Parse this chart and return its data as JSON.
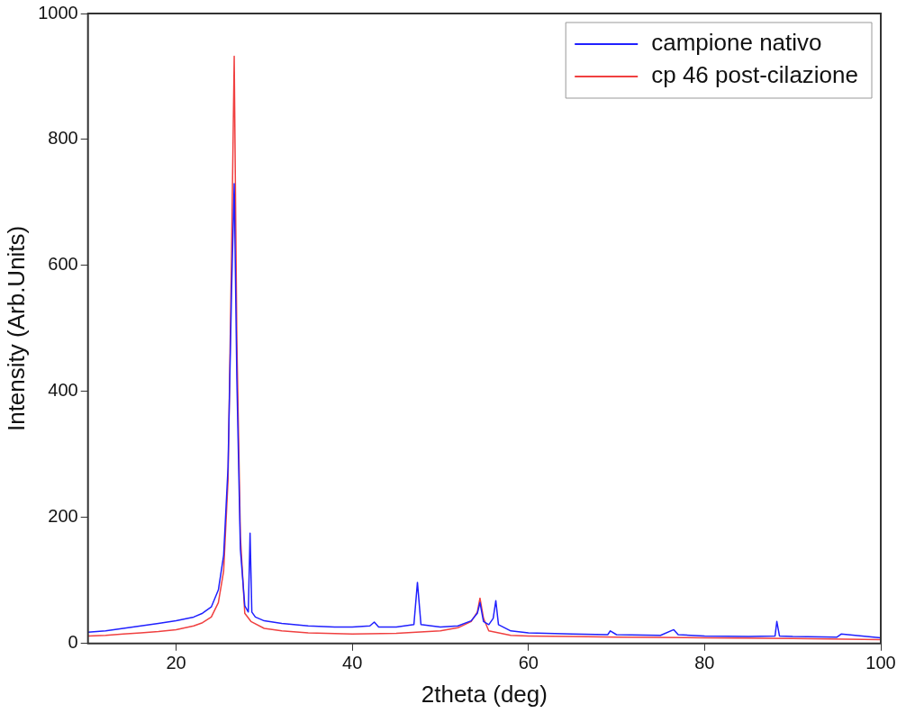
{
  "chart_data": {
    "type": "line",
    "xlabel": "2theta (deg)",
    "ylabel": "Intensity (Arb.Units)",
    "xlim": [
      10,
      100
    ],
    "ylim": [
      0,
      1000
    ],
    "xticks": [
      20,
      40,
      60,
      80,
      100
    ],
    "yticks": [
      0,
      200,
      400,
      600,
      800,
      1000
    ],
    "grid": false,
    "legend": "top right",
    "marker": "none",
    "line_style": "solid",
    "series": [
      {
        "name": "campione nativo",
        "color": "#2020ff",
        "x": [
          10,
          12,
          14,
          16,
          18,
          20,
          22,
          23,
          24,
          24.8,
          25.4,
          25.9,
          26.3,
          26.6,
          26.9,
          27.3,
          27.8,
          28.2,
          28.4,
          28.6,
          29,
          30,
          32,
          35,
          38,
          40,
          42,
          42.5,
          43,
          45,
          47,
          47.4,
          47.8,
          50,
          52,
          53.5,
          54.2,
          54.5,
          54.9,
          55.5,
          56,
          56.3,
          56.6,
          58,
          60,
          65,
          69,
          69.3,
          70,
          75,
          76.5,
          77,
          80,
          85,
          88,
          88.2,
          88.5,
          90,
          95,
          95.5,
          100
        ],
        "values": [
          18,
          20,
          24,
          28,
          32,
          36,
          42,
          48,
          58,
          85,
          140,
          280,
          560,
          730,
          420,
          150,
          60,
          50,
          175,
          50,
          42,
          36,
          32,
          28,
          26,
          26,
          28,
          34,
          26,
          26,
          30,
          97,
          30,
          26,
          28,
          36,
          48,
          65,
          35,
          30,
          40,
          68,
          30,
          20,
          17,
          15,
          14,
          20,
          14,
          13,
          22,
          14,
          12,
          11,
          12,
          35,
          12,
          11,
          10,
          15,
          9
        ]
      },
      {
        "name": "cp 46 post-cilazione",
        "color": "#f04040",
        "x": [
          10,
          12,
          14,
          16,
          18,
          20,
          22,
          23,
          24,
          24.8,
          25.4,
          25.9,
          26.3,
          26.6,
          26.9,
          27.3,
          27.8,
          28.5,
          30,
          32,
          35,
          40,
          45,
          50,
          52,
          53.5,
          54.2,
          54.5,
          54.9,
          55.5,
          58,
          60,
          65,
          70,
          80,
          90,
          100
        ],
        "values": [
          12,
          13,
          15,
          17,
          19,
          22,
          28,
          33,
          42,
          65,
          115,
          260,
          620,
          932,
          480,
          170,
          48,
          35,
          24,
          20,
          17,
          15,
          16,
          20,
          25,
          35,
          50,
          72,
          40,
          20,
          13,
          12,
          11,
          10,
          9,
          8,
          6
        ]
      }
    ]
  }
}
